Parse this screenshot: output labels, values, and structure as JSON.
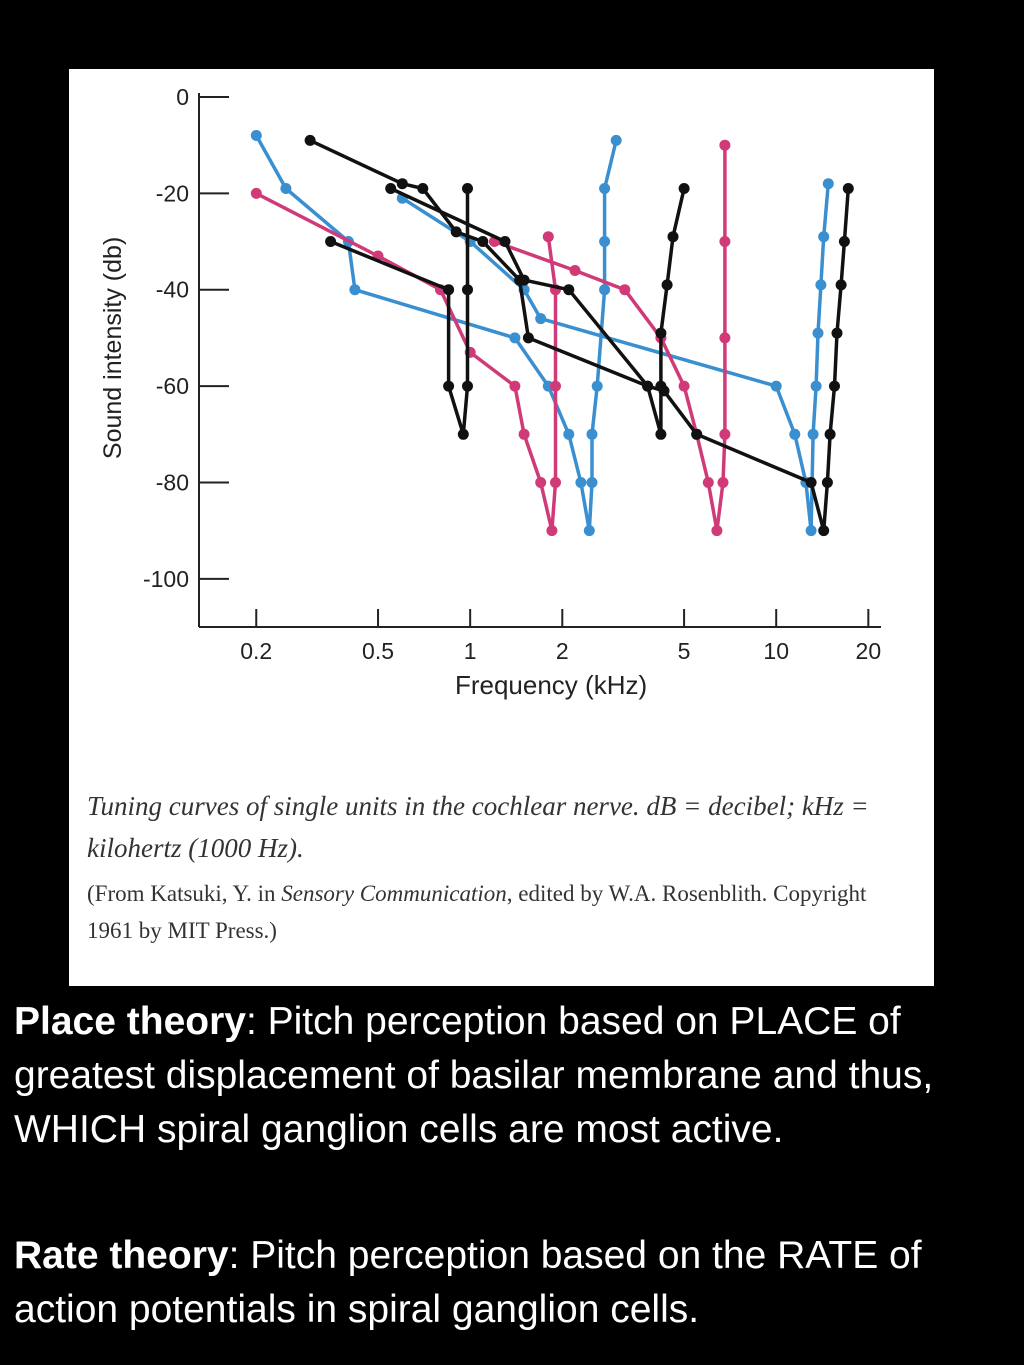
{
  "chart_data": {
    "type": "line",
    "xlabel": "Frequency (kHz)",
    "ylabel": "Sound intensity (db)",
    "x_scale": "log",
    "xlim": [
      0.13,
      22
    ],
    "ylim": [
      -110,
      0
    ],
    "x_ticks": [
      0.2,
      0.5,
      1,
      2,
      5,
      10,
      20
    ],
    "x_tick_labels": [
      "0.2",
      "0.5",
      "1",
      "2",
      "5",
      "10",
      "20"
    ],
    "y_ticks": [
      0,
      -20,
      -40,
      -60,
      -80,
      -100
    ],
    "y_tick_labels": [
      "0",
      "-20",
      "-40",
      "-60",
      "-80",
      "-100"
    ],
    "grid": false,
    "series": [
      {
        "color": "#3a8fd0",
        "points": [
          [
            0.2,
            -8
          ],
          [
            0.25,
            -19
          ],
          [
            0.4,
            -30
          ],
          [
            0.42,
            -40
          ],
          [
            1.4,
            -50
          ],
          [
            1.8,
            -60
          ],
          [
            2.1,
            -70
          ],
          [
            2.3,
            -80
          ],
          [
            2.45,
            -90
          ],
          [
            2.5,
            -80
          ],
          [
            2.5,
            -70
          ],
          [
            2.6,
            -60
          ],
          [
            2.75,
            -40
          ],
          [
            2.75,
            -30
          ],
          [
            2.75,
            -19
          ],
          [
            3.0,
            -9
          ]
        ]
      },
      {
        "color": "#3a8fd0",
        "points": [
          [
            0.6,
            -21
          ],
          [
            1.0,
            -30
          ],
          [
            1.5,
            -40
          ],
          [
            1.7,
            -46
          ],
          [
            10,
            -60
          ],
          [
            11.5,
            -70
          ],
          [
            12.5,
            -80
          ],
          [
            13,
            -90
          ],
          [
            13.2,
            -70
          ],
          [
            13.5,
            -60
          ],
          [
            13.7,
            -49
          ],
          [
            14,
            -39
          ],
          [
            14.3,
            -29
          ],
          [
            14.8,
            -18
          ]
        ]
      },
      {
        "color": "#d13a78",
        "points": [
          [
            0.2,
            -20
          ],
          [
            0.5,
            -33
          ],
          [
            0.8,
            -40
          ],
          [
            1.0,
            -53
          ],
          [
            1.4,
            -60
          ],
          [
            1.5,
            -70
          ],
          [
            1.7,
            -80
          ],
          [
            1.85,
            -90
          ],
          [
            1.9,
            -80
          ],
          [
            1.9,
            -60
          ],
          [
            1.9,
            -40
          ],
          [
            1.8,
            -29
          ]
        ]
      },
      {
        "color": "#d13a78",
        "points": [
          [
            1.2,
            -30
          ],
          [
            2.2,
            -36
          ],
          [
            3.2,
            -40
          ],
          [
            4.2,
            -50
          ],
          [
            5.0,
            -60
          ],
          [
            5.5,
            -70
          ],
          [
            6.0,
            -80
          ],
          [
            6.4,
            -90
          ],
          [
            6.7,
            -80
          ],
          [
            6.8,
            -70
          ],
          [
            6.8,
            -50
          ],
          [
            6.8,
            -30
          ],
          [
            6.8,
            -10
          ]
        ]
      },
      {
        "color": "#111111",
        "points": [
          [
            0.3,
            -9
          ],
          [
            0.6,
            -18
          ],
          [
            0.7,
            -19
          ],
          [
            0.9,
            -28
          ],
          [
            1.1,
            -30
          ],
          [
            1.45,
            -38
          ],
          [
            1.55,
            -50
          ],
          [
            3.8,
            -60
          ],
          [
            4.3,
            -61
          ],
          [
            5.5,
            -70
          ],
          [
            13,
            -80
          ],
          [
            14.3,
            -90
          ],
          [
            14.7,
            -80
          ],
          [
            15,
            -70
          ],
          [
            15.5,
            -60
          ],
          [
            15.8,
            -49
          ],
          [
            16.3,
            -39
          ],
          [
            16.7,
            -30
          ],
          [
            17.2,
            -19
          ]
        ]
      },
      {
        "color": "#111111",
        "points": [
          [
            0.35,
            -30
          ],
          [
            0.85,
            -40
          ],
          [
            0.85,
            -60
          ],
          [
            0.95,
            -70
          ],
          [
            0.98,
            -60
          ],
          [
            0.98,
            -40
          ],
          [
            0.98,
            -19
          ]
        ]
      },
      {
        "color": "#111111",
        "points": [
          [
            0.55,
            -19
          ],
          [
            1.3,
            -30
          ],
          [
            1.5,
            -38
          ],
          [
            2.1,
            -40
          ],
          [
            3.8,
            -60
          ],
          [
            4.2,
            -70
          ],
          [
            4.2,
            -60
          ],
          [
            4.2,
            -49
          ],
          [
            4.4,
            -39
          ],
          [
            4.6,
            -29
          ],
          [
            5.0,
            -19
          ]
        ]
      }
    ]
  },
  "caption": {
    "main": "Tuning curves of single units in the cochlear nerve. dB = decibel; kHz = kilohertz (1000 Hz).",
    "credit_before": "(From Katsuki, Y. in ",
    "credit_title": "Sensory Communication",
    "credit_after": ", edited by W.A. Rosenblith. Copyright 1961 by MIT Press.)"
  },
  "place_theory": {
    "term": "Place theory",
    "text": ":  Pitch perception based on PLACE of greatest displacement of basilar membrane and thus, WHICH spiral ganglion cells are most active."
  },
  "rate_theory": {
    "term": "Rate theory",
    "text": ":  Pitch perception based on the RATE of action potentials in spiral ganglion cells."
  }
}
